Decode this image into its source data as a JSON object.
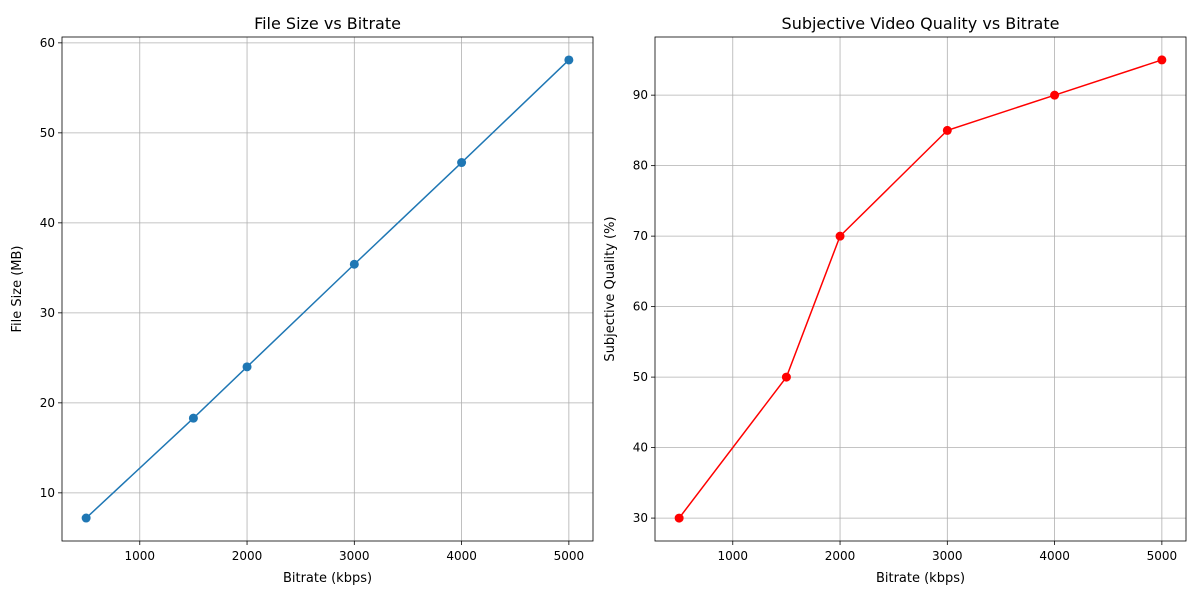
{
  "chart_data": [
    {
      "type": "line",
      "title": "File Size vs Bitrate",
      "xlabel": "Bitrate (kbps)",
      "ylabel": "File Size (MB)",
      "x": [
        500,
        1500,
        2000,
        3000,
        4000,
        5000
      ],
      "series": [
        {
          "values": [
            7.2,
            18.3,
            24.0,
            35.4,
            46.7,
            58.1
          ],
          "color": "#1f77b4",
          "marker": "circle"
        }
      ],
      "xlim": [
        275,
        5225
      ],
      "ylim": [
        4.65,
        60.65
      ],
      "xticks": [
        1000,
        2000,
        3000,
        4000,
        5000
      ],
      "yticks": [
        10,
        20,
        30,
        40,
        50,
        60
      ],
      "grid": true
    },
    {
      "type": "line",
      "title": "Subjective Video Quality vs Bitrate",
      "xlabel": "Bitrate (kbps)",
      "ylabel": "Subjective Quality (%)",
      "x": [
        500,
        1500,
        2000,
        3000,
        4000,
        5000
      ],
      "series": [
        {
          "values": [
            30,
            50,
            70,
            85,
            90,
            95
          ],
          "color": "#ff0000",
          "marker": "circle"
        }
      ],
      "xlim": [
        275,
        5225
      ],
      "ylim": [
        26.75,
        98.25
      ],
      "xticks": [
        1000,
        2000,
        3000,
        4000,
        5000
      ],
      "yticks": [
        30,
        40,
        50,
        60,
        70,
        80,
        90
      ],
      "grid": true
    }
  ]
}
